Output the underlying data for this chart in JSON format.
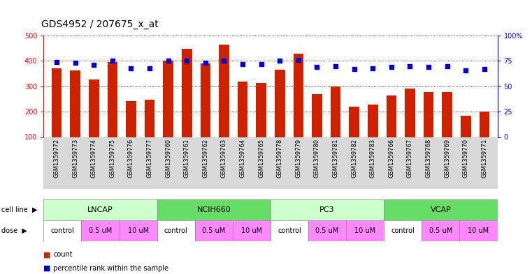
{
  "title": "GDS4952 / 207675_x_at",
  "samples": [
    "GSM1359772",
    "GSM1359773",
    "GSM1359774",
    "GSM1359775",
    "GSM1359776",
    "GSM1359777",
    "GSM1359760",
    "GSM1359761",
    "GSM1359762",
    "GSM1359763",
    "GSM1359764",
    "GSM1359765",
    "GSM1359778",
    "GSM1359779",
    "GSM1359780",
    "GSM1359781",
    "GSM1359782",
    "GSM1359783",
    "GSM1359766",
    "GSM1359767",
    "GSM1359768",
    "GSM1359769",
    "GSM1359770",
    "GSM1359771"
  ],
  "counts": [
    370,
    362,
    327,
    397,
    242,
    247,
    402,
    447,
    390,
    464,
    319,
    313,
    365,
    428,
    270,
    299,
    220,
    229,
    264,
    292,
    277,
    277,
    183,
    200
  ],
  "percentile_ranks": [
    74,
    73,
    71,
    75,
    68,
    68,
    75,
    75,
    73,
    75,
    72,
    72,
    75,
    76,
    69,
    70,
    67,
    68,
    69,
    70,
    69,
    70,
    66,
    67
  ],
  "cell_lines": [
    {
      "label": "LNCAP",
      "start": 0,
      "end": 6
    },
    {
      "label": "NCIH660",
      "start": 6,
      "end": 12
    },
    {
      "label": "PC3",
      "start": 12,
      "end": 18
    },
    {
      "label": "VCAP",
      "start": 18,
      "end": 24
    }
  ],
  "cell_line_colors": [
    "#ccffcc",
    "#66dd66",
    "#ccffcc",
    "#66dd66"
  ],
  "dose_groups": [
    {
      "label": "control",
      "start": 0,
      "end": 2
    },
    {
      "label": "0.5 uM",
      "start": 2,
      "end": 4
    },
    {
      "label": "10 uM",
      "start": 4,
      "end": 6
    },
    {
      "label": "control",
      "start": 6,
      "end": 8
    },
    {
      "label": "0.5 uM",
      "start": 8,
      "end": 10
    },
    {
      "label": "10 uM",
      "start": 10,
      "end": 12
    },
    {
      "label": "control",
      "start": 12,
      "end": 14
    },
    {
      "label": "0.5 uM",
      "start": 14,
      "end": 16
    },
    {
      "label": "10 uM",
      "start": 16,
      "end": 18
    },
    {
      "label": "control",
      "start": 18,
      "end": 20
    },
    {
      "label": "0.5 uM",
      "start": 20,
      "end": 22
    },
    {
      "label": "10 uM",
      "start": 22,
      "end": 24
    }
  ],
  "dose_colors": [
    "#ffffff",
    "#ff88ff",
    "#ff88ff",
    "#ffffff",
    "#ff88ff",
    "#ff88ff",
    "#ffffff",
    "#ff88ff",
    "#ff88ff",
    "#ffffff",
    "#ff88ff",
    "#ff88ff"
  ],
  "bar_color": "#cc2200",
  "dot_color": "#0000cc",
  "ylim_left": [
    100,
    500
  ],
  "ylim_right": [
    0,
    100
  ],
  "yticks_left": [
    100,
    200,
    300,
    400,
    500
  ],
  "yticks_right": [
    0,
    25,
    50,
    75,
    100
  ],
  "ytick_labels_right": [
    "0",
    "25",
    "50",
    "75",
    "100%"
  ],
  "background_color": "#ffffff",
  "plot_bg_color": "#ffffff",
  "title_fontsize": 10,
  "tick_fontsize": 7,
  "sample_fontsize": 6,
  "cell_line_fontsize": 8,
  "dose_fontsize": 7,
  "legend_fontsize": 7
}
